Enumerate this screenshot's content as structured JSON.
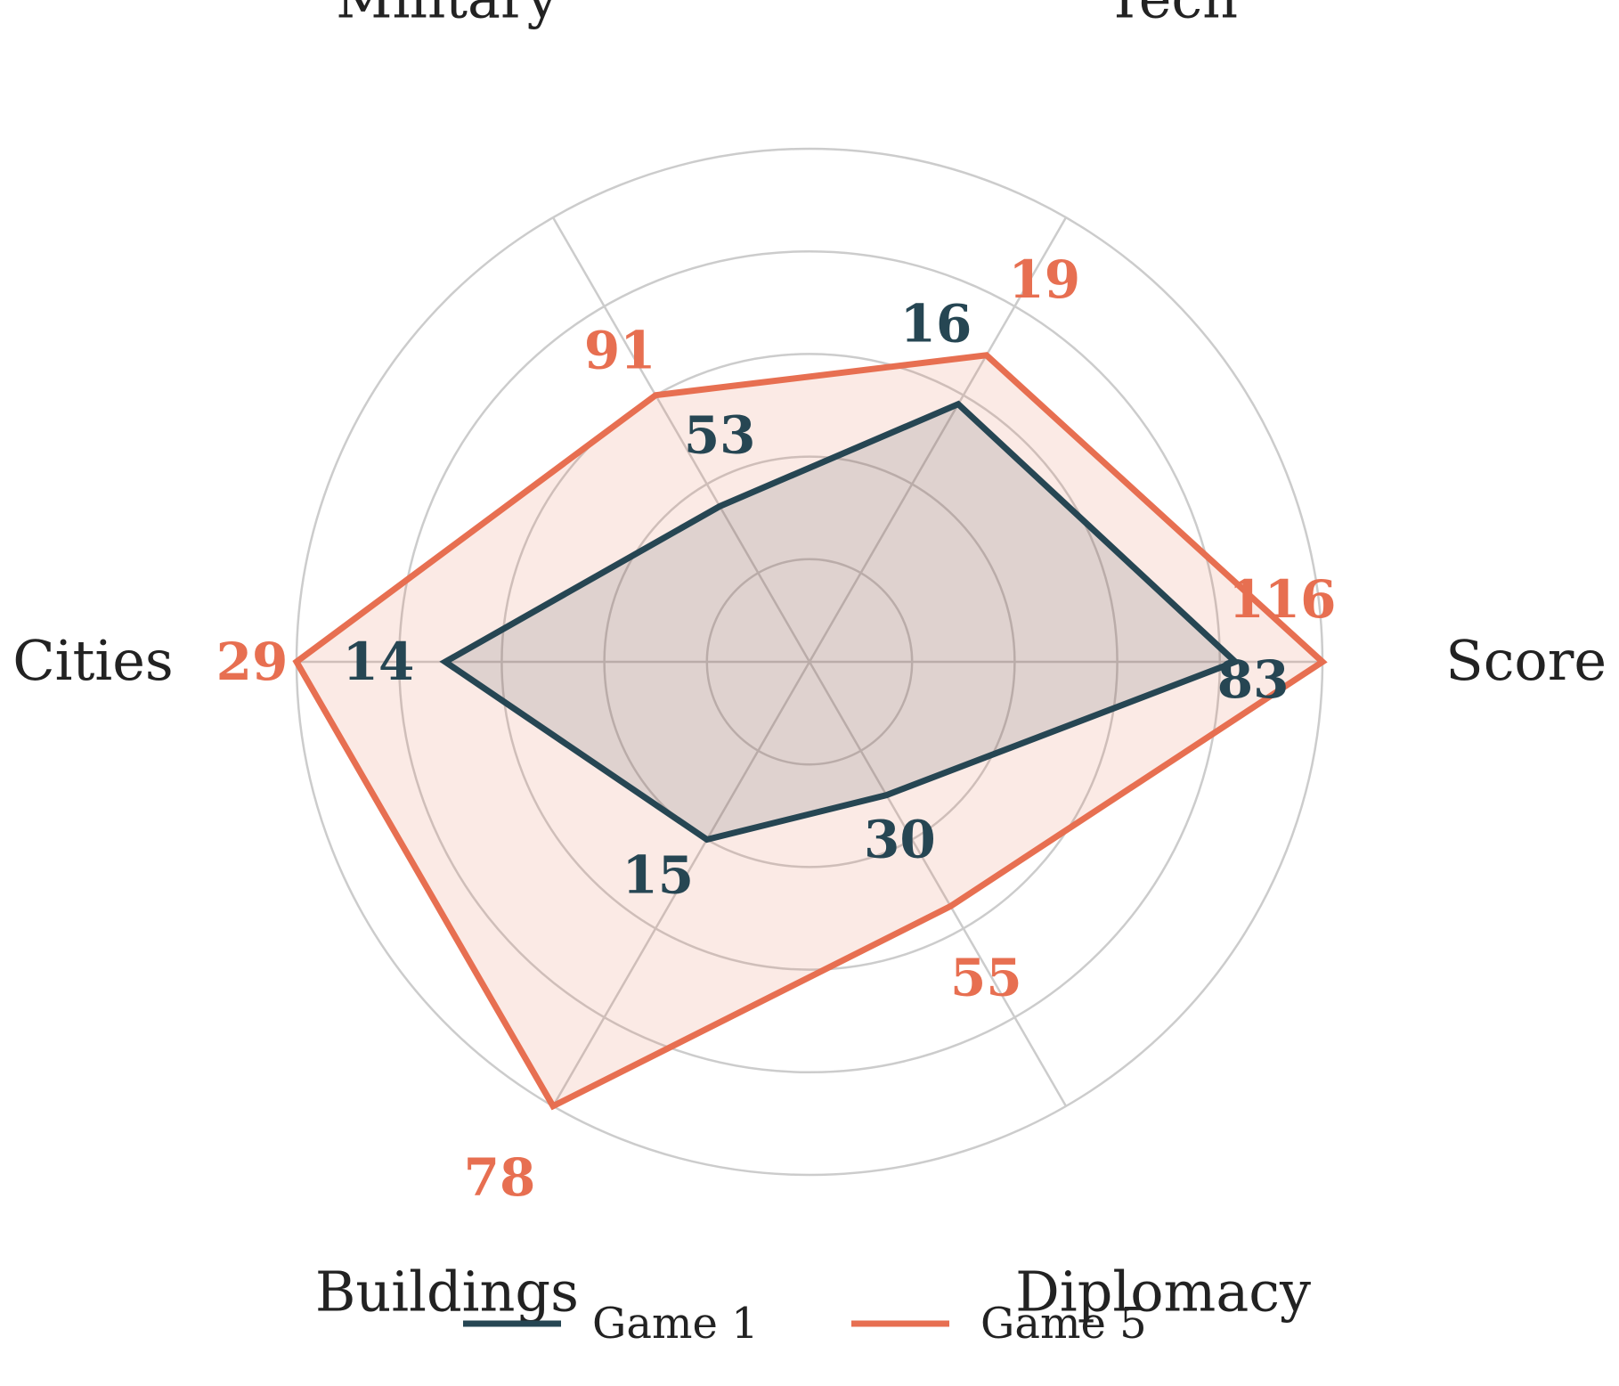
{
  "chart_data": {
    "type": "radar",
    "axes": [
      "Score",
      "Tech",
      "Military",
      "Cities",
      "Buildings",
      "Diplomacy"
    ],
    "grid": true,
    "legend_position": "bottom-center",
    "series": [
      {
        "name": "Game 1",
        "color": "#264653",
        "fill": "#264653",
        "values": [
          83,
          16,
          53,
          14,
          15,
          30
        ],
        "labels": [
          "83",
          "16",
          "53",
          "14",
          "15",
          "30"
        ],
        "normalized": [
          0.83,
          0.58,
          0.35,
          0.71,
          0.4,
          0.3
        ]
      },
      {
        "name": "Game 5",
        "color": "#e76f51",
        "fill": "#e76f51",
        "values": [
          116,
          19,
          91,
          29,
          78,
          55
        ],
        "labels": [
          "116",
          "19",
          "91",
          "29",
          "78",
          "55"
        ],
        "normalized": [
          1.0,
          0.69,
          0.6,
          1.0,
          1.0,
          0.55
        ]
      }
    ]
  }
}
